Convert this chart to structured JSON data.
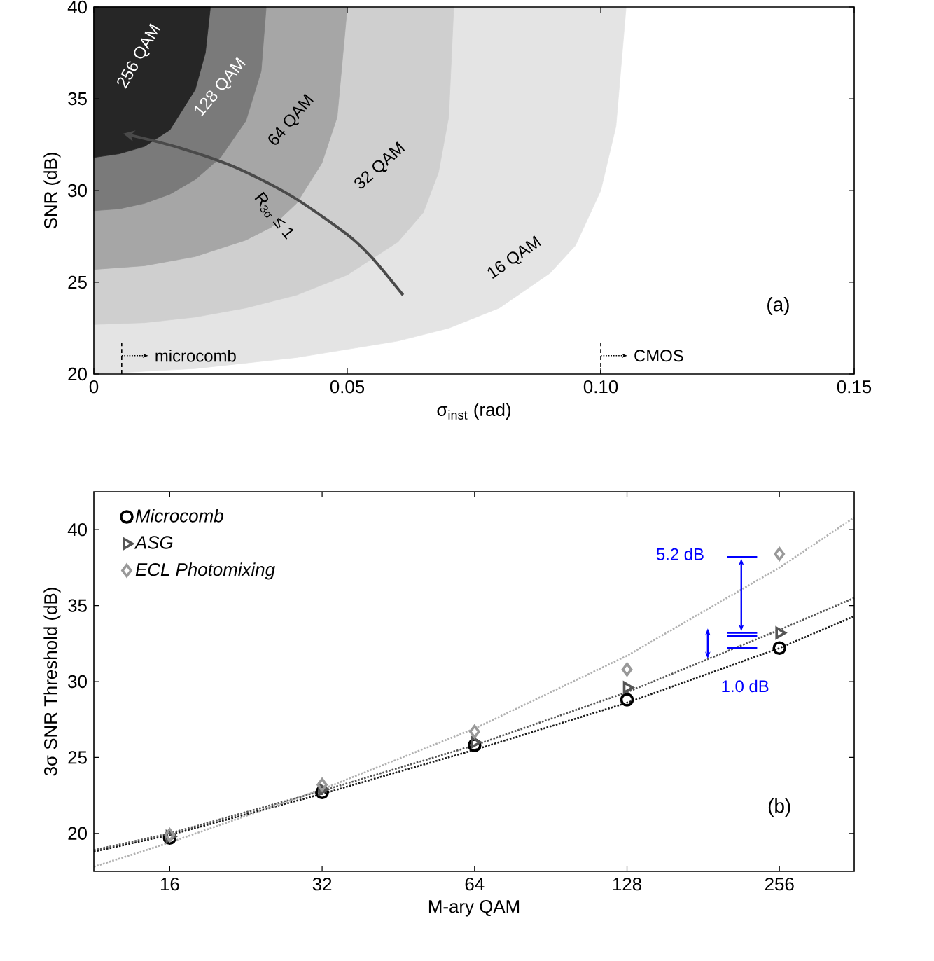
{
  "chart_data": [
    {
      "type": "line",
      "xlabel": "σ$_{inst}$ (rad)",
      "ylabel": "SNR (dB)",
      "xlim": [
        0,
        0.15
      ],
      "ylim": [
        20,
        40
      ],
      "xticks": [
        0,
        0.05,
        {
          "value": 0.1,
          "label": "0.10"
        },
        0.15
      ],
      "yticks": [
        20,
        25,
        30,
        35,
        40
      ],
      "legend": false,
      "series": [
        {
          "type": "area",
          "color": "#e4e4e4",
          "x": [
            0,
            0,
            0.02,
            0.04,
            0.06,
            0.07,
            0.08,
            0.09,
            0.095,
            0.1,
            0.103,
            0.105
          ],
          "values": [
            40,
            20,
            20.3,
            20.9,
            21.8,
            22.5,
            23.6,
            25.5,
            27,
            30,
            33.5,
            40
          ]
        },
        {
          "type": "area",
          "color": "#cfcfcf",
          "x": [
            0,
            0,
            0.01,
            0.02,
            0.03,
            0.04,
            0.05,
            0.06,
            0.065,
            0.068,
            0.07,
            0.071
          ],
          "values": [
            40,
            22.7,
            22.8,
            23.1,
            23.6,
            24.3,
            25.4,
            27.2,
            28.8,
            31,
            34,
            40
          ]
        },
        {
          "type": "area",
          "color": "#a6a6a6",
          "x": [
            0,
            0,
            0.01,
            0.02,
            0.03,
            0.035,
            0.04,
            0.045,
            0.048,
            0.05
          ],
          "values": [
            40,
            25.7,
            25.9,
            26.4,
            27.3,
            28.0,
            29.3,
            31.5,
            34,
            40
          ]
        },
        {
          "type": "area",
          "color": "#7a7a7a",
          "x": [
            0,
            0,
            0.005,
            0.01,
            0.015,
            0.02,
            0.025,
            0.03,
            0.033,
            0.034
          ],
          "values": [
            40,
            28.9,
            29.0,
            29.3,
            29.8,
            30.6,
            31.8,
            33.8,
            36.5,
            40
          ]
        },
        {
          "type": "area",
          "color": "#262626",
          "x": [
            0,
            0,
            0.005,
            0.01,
            0.015,
            0.02,
            0.022,
            0.023
          ],
          "values": [
            40,
            31.8,
            32.0,
            32.4,
            33.3,
            35.5,
            37.5,
            40
          ]
        }
      ],
      "ref_lines": [
        {
          "axis": "x",
          "value": 0.0055,
          "label": "microcomb",
          "line_style": "dashed"
        },
        {
          "axis": "x",
          "value": 0.1,
          "label": "CMOS",
          "line_style": "dashed"
        }
      ],
      "annotations": [
        "256 QAM",
        "128 QAM",
        "64 QAM",
        "32 QAM",
        "R$_{3σ}$ ≤ 1",
        "16 QAM",
        "(a)"
      ]
    },
    {
      "type": "scatter",
      "xlabel": "M-ary QAM",
      "ylabel": "3σ SNR Threshold (dB)",
      "log": "x",
      "xlim": [
        11.33,
        359.7
      ],
      "ylim": [
        17.5,
        42.5
      ],
      "xticks": [
        16,
        32,
        64,
        128,
        256
      ],
      "yticks": [
        20,
        25,
        30,
        35,
        40
      ],
      "legend": "top left",
      "x": [
        16,
        32,
        64,
        128,
        256
      ],
      "series": [
        {
          "type": "line",
          "color": "#1a1a1a",
          "line_style": "dotted",
          "marker": "none",
          "x": [
            11.33,
            16,
            32,
            64,
            128,
            256,
            359.7
          ],
          "values": [
            18.8,
            19.9,
            22.6,
            25.5,
            28.6,
            32.2,
            34.3
          ]
        },
        {
          "type": "line",
          "color": "#555555",
          "line_style": "dotted",
          "marker": "none",
          "x": [
            11.33,
            16,
            32,
            64,
            128,
            256,
            359.7
          ],
          "values": [
            18.9,
            20.0,
            22.8,
            25.8,
            29.3,
            33.4,
            35.5
          ]
        },
        {
          "type": "line",
          "color": "#b0b0b0",
          "line_style": "dotted",
          "marker": "none",
          "x": [
            11.33,
            16,
            32,
            64,
            128,
            256,
            359.7
          ],
          "values": [
            17.8,
            19.4,
            22.9,
            26.9,
            31.7,
            37.5,
            40.8
          ]
        },
        {
          "name": "Microcomb",
          "color": "#000000",
          "marker": "circle",
          "values": [
            19.7,
            22.7,
            25.8,
            28.8,
            32.2
          ]
        },
        {
          "name": "ASG",
          "color": "#555555",
          "marker": "triangle",
          "values": [
            19.8,
            22.9,
            26.0,
            29.6,
            33.2
          ]
        },
        {
          "name": "ECL Photomixing",
          "color": "#999999",
          "marker": "diamond",
          "values": [
            19.9,
            23.2,
            26.7,
            30.8,
            38.4
          ]
        }
      ],
      "annotations": [
        "5.2 dB",
        "1.0 dB",
        "(b)"
      ]
    }
  ]
}
